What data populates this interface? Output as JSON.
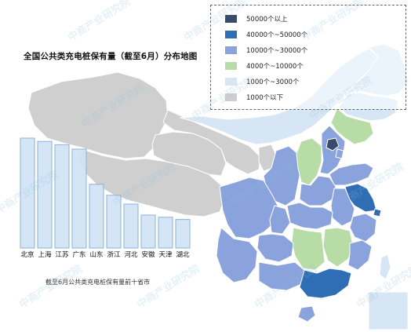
{
  "title": "全国公共类充电桩保有量（截至6月）分布地图",
  "legend": {
    "items": [
      {
        "label": "50000个以上",
        "color": "#3a4a6b"
      },
      {
        "label": "40000个~50000个",
        "color": "#2f6db5"
      },
      {
        "label": "10000个~30000个",
        "color": "#8aa3dc"
      },
      {
        "label": "4000个~10000个",
        "color": "#b8dca6"
      },
      {
        "label": "1000个~3000个",
        "color": "#d6e6f5"
      },
      {
        "label": "1000个以下",
        "color": "#cfcfcf"
      }
    ]
  },
  "chart_data": {
    "type": "bar",
    "caption": "截至6月公共类充电桩保有量前十省市",
    "categories": [
      "北京",
      "上海",
      "江苏",
      "广东",
      "山东",
      "浙江",
      "河北",
      "安徽",
      "天津",
      "湖北"
    ],
    "values": [
      100,
      97,
      94,
      90,
      58,
      48,
      40,
      30,
      28,
      26
    ],
    "bar_color": "#cfe3f5",
    "bar_border": "#8db1d6"
  },
  "watermark": "中商产业研究院"
}
